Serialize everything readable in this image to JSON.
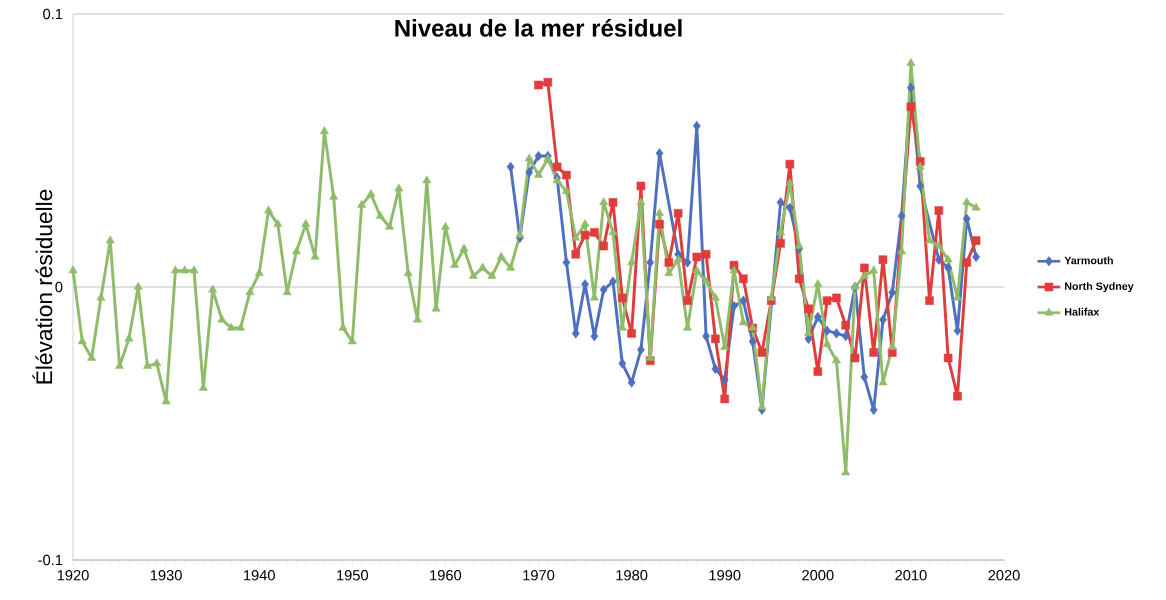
{
  "chart_data": {
    "type": "line",
    "title": "Niveau de la mer résiduel",
    "ylabel": "Élévation résiduelle",
    "xlim": [
      1920,
      2020
    ],
    "xticks": [
      1920,
      1930,
      1940,
      1950,
      1960,
      1970,
      1980,
      1990,
      2000,
      2010,
      2020
    ],
    "ylim": [
      -0.1,
      0.1
    ],
    "yticks": [
      -0.1,
      0,
      0.1
    ],
    "grid": "y",
    "legend": "right",
    "series": [
      {
        "name": "Yarmouth",
        "color": "#4f6fbf",
        "marker": "diamond",
        "x": [
          1967,
          1968,
          1969,
          1970,
          1971,
          1972,
          1973,
          1974,
          1975,
          1976,
          1977,
          1978,
          1979,
          1980,
          1981,
          1982,
          1983,
          1984,
          1985,
          1986,
          1987,
          1988,
          1989,
          1990,
          1991,
          1992,
          1993,
          1994,
          1995,
          1996,
          1997,
          1998,
          1999,
          2000,
          2001,
          2002,
          2003,
          2004,
          2005,
          2006,
          2007,
          2008,
          2009,
          2010,
          2011,
          2012,
          2013,
          2014,
          2015,
          2016,
          2017
        ],
        "values": [
          0.044,
          0.018,
          0.042,
          0.048,
          0.048,
          0.04,
          0.009,
          -0.017,
          0.001,
          -0.018,
          -0.001,
          0.002,
          -0.028,
          -0.035,
          -0.023,
          0.009,
          0.049,
          null,
          0.012,
          0.009,
          0.059,
          -0.018,
          -0.03,
          -0.034,
          -0.007,
          -0.005,
          -0.02,
          -0.045,
          null,
          0.031,
          0.029,
          0.014,
          -0.019,
          -0.011,
          -0.016,
          -0.017,
          -0.018,
          0.0,
          -0.033,
          -0.045,
          -0.012,
          -0.002,
          0.026,
          0.073,
          0.037,
          null,
          0.01,
          0.007,
          -0.016,
          0.025,
          0.011
        ]
      },
      {
        "name": "North Sydney",
        "color": "#e03c3c",
        "marker": "square",
        "x": [
          1970,
          1971,
          1972,
          1973,
          1974,
          1975,
          1976,
          1977,
          1978,
          1979,
          1980,
          1981,
          1982,
          1983,
          1984,
          1985,
          1986,
          1987,
          1988,
          1989,
          1990,
          1991,
          1992,
          1993,
          1994,
          1995,
          1996,
          1997,
          1998,
          1999,
          2000,
          2001,
          2002,
          2003,
          2004,
          2005,
          2006,
          2007,
          2008,
          2009,
          2010,
          2011,
          2012,
          2013,
          2014,
          2015,
          2016,
          2017
        ],
        "values": [
          0.074,
          0.075,
          0.044,
          0.041,
          0.012,
          0.019,
          0.02,
          0.015,
          0.031,
          -0.004,
          -0.017,
          0.037,
          -0.027,
          0.023,
          0.009,
          0.027,
          -0.005,
          0.011,
          0.012,
          -0.019,
          -0.041,
          0.008,
          0.003,
          -0.015,
          -0.024,
          -0.005,
          0.016,
          0.045,
          0.003,
          -0.008,
          -0.031,
          -0.005,
          -0.004,
          -0.014,
          -0.026,
          0.007,
          -0.024,
          0.01,
          -0.024,
          null,
          0.066,
          0.046,
          -0.005,
          0.028,
          -0.026,
          -0.04,
          0.009,
          0.017
        ]
      },
      {
        "name": "Halifax",
        "color": "#8fbc6a",
        "marker": "triangle",
        "x": [
          1920,
          1921,
          1922,
          1923,
          1924,
          1925,
          1926,
          1927,
          1928,
          1929,
          1930,
          1931,
          1932,
          1933,
          1934,
          1935,
          1936,
          1937,
          1938,
          1939,
          1940,
          1941,
          1942,
          1943,
          1944,
          1945,
          1946,
          1947,
          1948,
          1949,
          1950,
          1951,
          1952,
          1953,
          1954,
          1955,
          1956,
          1957,
          1958,
          1959,
          1960,
          1961,
          1962,
          1963,
          1964,
          1965,
          1966,
          1967,
          1968,
          1969,
          1970,
          1971,
          1972,
          1973,
          1974,
          1975,
          1976,
          1977,
          1978,
          1979,
          1980,
          1981,
          1982,
          1983,
          1984,
          1985,
          1986,
          1987,
          1988,
          1989,
          1990,
          1991,
          1992,
          1993,
          1994,
          1995,
          1996,
          1997,
          1998,
          1999,
          2000,
          2001,
          2002,
          2003,
          2004,
          2005,
          2006,
          2007,
          2008,
          2009,
          2010,
          2011,
          2012,
          2013,
          2014,
          2015,
          2016,
          2017
        ],
        "values": [
          0.006,
          -0.02,
          -0.026,
          -0.004,
          0.017,
          -0.029,
          -0.019,
          0.0,
          -0.029,
          -0.028,
          -0.042,
          0.006,
          0.006,
          0.006,
          -0.037,
          -0.001,
          -0.012,
          -0.015,
          -0.015,
          -0.002,
          0.005,
          0.028,
          0.023,
          -0.002,
          0.013,
          0.023,
          0.011,
          0.057,
          0.033,
          -0.015,
          -0.02,
          0.03,
          0.034,
          0.026,
          0.022,
          0.036,
          0.005,
          -0.012,
          0.039,
          -0.008,
          0.022,
          0.008,
          0.014,
          0.004,
          0.007,
          0.004,
          0.011,
          0.007,
          0.019,
          0.047,
          0.041,
          0.047,
          0.039,
          0.035,
          0.018,
          0.023,
          -0.004,
          0.031,
          0.02,
          -0.015,
          0.009,
          0.031,
          -0.026,
          0.027,
          0.005,
          0.01,
          -0.015,
          0.006,
          0.002,
          -0.004,
          -0.022,
          0.006,
          -0.013,
          -0.015,
          -0.044,
          -0.004,
          0.02,
          0.038,
          0.015,
          -0.017,
          0.001,
          -0.021,
          -0.027,
          -0.068,
          0.0,
          0.004,
          0.006,
          -0.035,
          -0.022,
          0.013,
          0.082,
          0.044,
          0.017,
          0.015,
          0.01,
          -0.004,
          0.031,
          0.029
        ]
      }
    ]
  }
}
